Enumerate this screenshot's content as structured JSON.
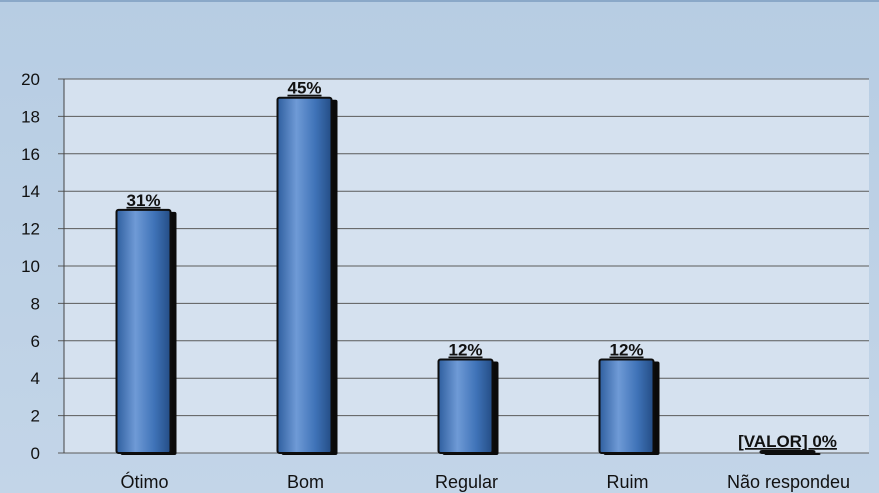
{
  "chart_data": {
    "type": "bar",
    "categories": [
      "Ótimo",
      "Bom",
      "Regular",
      "Ruim",
      "Não respondeu"
    ],
    "values": [
      13,
      19,
      5,
      5,
      0
    ],
    "data_labels": [
      "31%",
      "45%",
      "12%",
      "12%",
      "[VALOR] 0%"
    ],
    "ylim": [
      0,
      20
    ],
    "yticks": [
      "0",
      "2",
      "4",
      "6",
      "8",
      "10",
      "12",
      "14",
      "16",
      "18",
      "20"
    ],
    "grid": true,
    "colors": {
      "bar": "#3f73b8",
      "bar_highlight": "#6f9ad6",
      "bar_shadow": "#0a0a0a",
      "plot_bg": "#d5e1ef",
      "outer_bg": "#b9cfe5",
      "gridline": "#5a5a5a"
    }
  }
}
